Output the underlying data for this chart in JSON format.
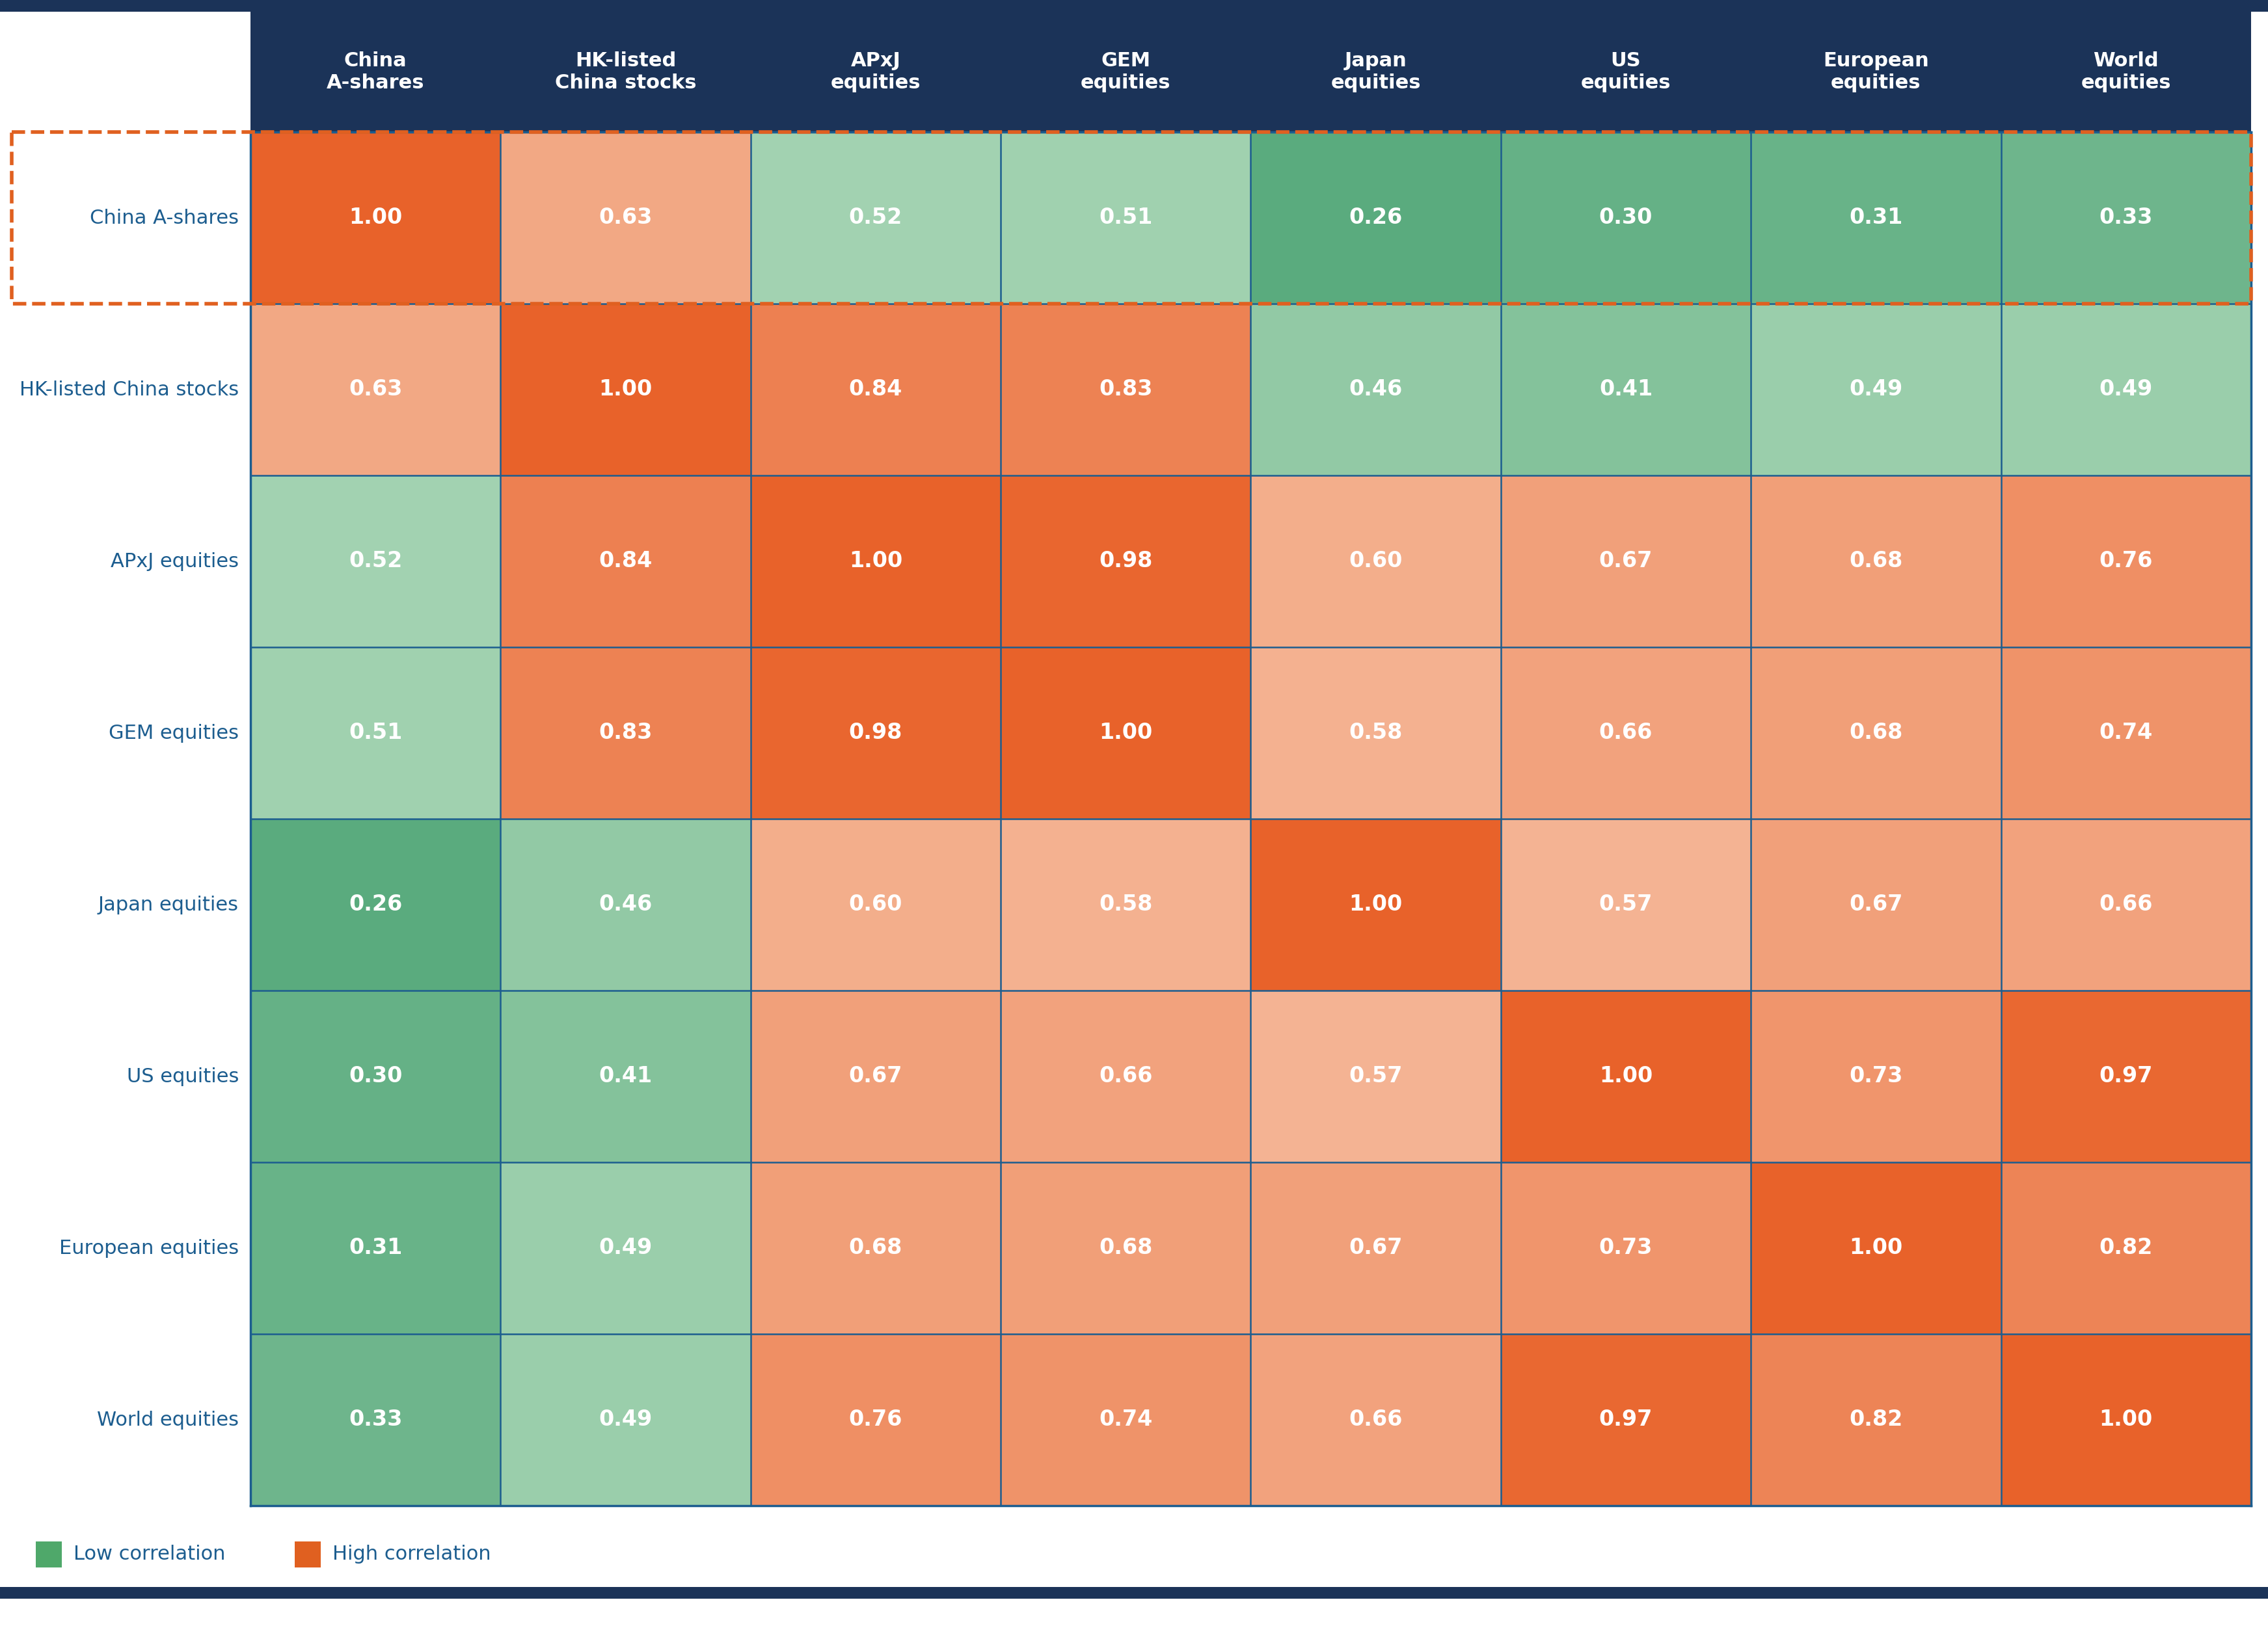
{
  "row_labels": [
    "China A-shares",
    "HK-listed China stocks",
    "APxJ equities",
    "GEM equities",
    "Japan equities",
    "US equities",
    "European equities",
    "World equities"
  ],
  "col_labels": [
    "China\nA-shares",
    "HK-listed\nChina stocks",
    "APxJ\nequities",
    "GEM\nequities",
    "Japan\nequities",
    "US\nequities",
    "European\nequities",
    "World\nequities"
  ],
  "matrix": [
    [
      1.0,
      0.63,
      0.52,
      0.51,
      0.26,
      0.3,
      0.31,
      0.33
    ],
    [
      0.63,
      1.0,
      0.84,
      0.83,
      0.46,
      0.41,
      0.49,
      0.49
    ],
    [
      0.52,
      0.84,
      1.0,
      0.98,
      0.6,
      0.67,
      0.68,
      0.76
    ],
    [
      0.51,
      0.83,
      0.98,
      1.0,
      0.58,
      0.66,
      0.68,
      0.74
    ],
    [
      0.26,
      0.46,
      0.6,
      0.58,
      1.0,
      0.57,
      0.67,
      0.66
    ],
    [
      0.3,
      0.41,
      0.67,
      0.66,
      0.57,
      1.0,
      0.73,
      0.97
    ],
    [
      0.31,
      0.49,
      0.68,
      0.68,
      0.67,
      0.73,
      1.0,
      0.82
    ],
    [
      0.33,
      0.49,
      0.76,
      0.74,
      0.66,
      0.97,
      0.82,
      1.0
    ]
  ],
  "header_bg": "#1b3358",
  "row_label_color": "#1c5d8f",
  "cell_text_color": "#ffffff",
  "background_color": "#ffffff",
  "dashed_rect_color": "#e06020",
  "legend_low_color": "#4fa86a",
  "legend_high_color": "#e06020",
  "legend_low_label": "Low correlation",
  "legend_high_label": "High correlation",
  "navy_bar_color": "#1b3358",
  "grid_line_color": "#1c5d8f",
  "green_dark": [
    90,
    171,
    126
  ],
  "green_light": [
    168,
    213,
    181
  ],
  "orange_light": [
    245,
    185,
    154
  ],
  "orange_dark": [
    232,
    98,
    42
  ],
  "color_mid_point": 0.54
}
